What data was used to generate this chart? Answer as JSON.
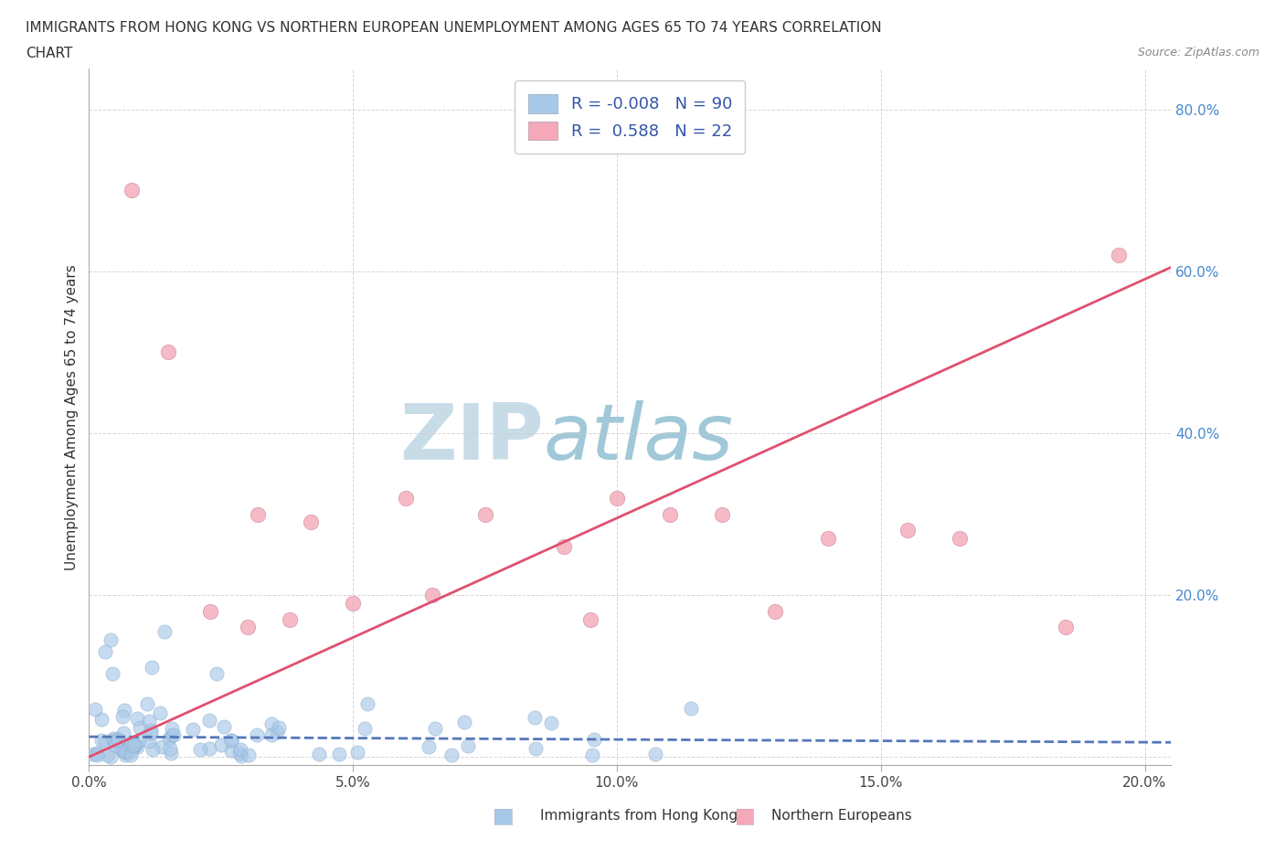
{
  "title_line1": "IMMIGRANTS FROM HONG KONG VS NORTHERN EUROPEAN UNEMPLOYMENT AMONG AGES 65 TO 74 YEARS CORRELATION",
  "title_line2": "CHART",
  "source_text": "Source: ZipAtlas.com",
  "ylabel": "Unemployment Among Ages 65 to 74 years",
  "legend_label1": "Immigrants from Hong Kong",
  "legend_label2": "Northern Europeans",
  "legend_R1": "-0.008",
  "legend_N1": "90",
  "legend_R2": "0.588",
  "legend_N2": "22",
  "color_hk": "#a8c8e8",
  "color_ne": "#f4a8b8",
  "trendline_color_hk": "#5577bb",
  "trendline_color_ne": "#e05070",
  "watermark_color": "#cce0ee",
  "xlim": [
    0.0,
    0.205
  ],
  "ylim": [
    -0.01,
    0.85
  ],
  "xticks": [
    0.0,
    0.05,
    0.1,
    0.15,
    0.2
  ],
  "yticks": [
    0.0,
    0.2,
    0.4,
    0.6,
    0.8
  ],
  "xticklabels": [
    "0.0%",
    "5.0%",
    "10.0%",
    "15.0%",
    "20.0%"
  ],
  "yticklabels": [
    "",
    "20.0%",
    "40.0%",
    "60.0%",
    "80.0%"
  ],
  "ne_x": [
    0.008,
    0.015,
    0.023,
    0.03,
    0.032,
    0.038,
    0.042,
    0.05,
    0.06,
    0.065,
    0.075,
    0.09,
    0.095,
    0.1,
    0.11,
    0.12,
    0.13,
    0.14,
    0.155,
    0.165,
    0.185,
    0.195
  ],
  "ne_y": [
    0.7,
    0.5,
    0.18,
    0.16,
    0.3,
    0.17,
    0.29,
    0.19,
    0.32,
    0.2,
    0.3,
    0.26,
    0.17,
    0.32,
    0.3,
    0.3,
    0.18,
    0.27,
    0.28,
    0.27,
    0.16,
    0.62
  ]
}
